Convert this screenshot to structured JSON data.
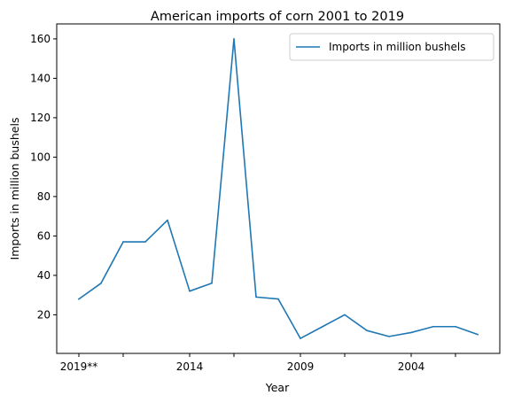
{
  "chart_data": {
    "type": "line",
    "title": "American imports of corn 2001 to 2019",
    "xlabel": "Year",
    "ylabel": "Imports in million bushels",
    "categories": [
      "2019**",
      "2018",
      "2017",
      "2016",
      "2015",
      "2014",
      "2013",
      "2012",
      "2011",
      "2010",
      "2009",
      "2008",
      "2007",
      "2006",
      "2005",
      "2004",
      "2003",
      "2002",
      "2001"
    ],
    "x_tick_labels": [
      {
        "category": "2019**",
        "label": "2019**"
      },
      {
        "category": "2017",
        "label": ""
      },
      {
        "category": "2014",
        "label": "2014"
      },
      {
        "category": "2012",
        "label": ""
      },
      {
        "category": "2009",
        "label": "2009"
      },
      {
        "category": "2007",
        "label": ""
      },
      {
        "category": "2004",
        "label": "2004"
      },
      {
        "category": "2002",
        "label": ""
      }
    ],
    "series": [
      {
        "name": "Imports in million bushels",
        "color": "#1f77b4",
        "values": [
          28,
          36,
          57,
          57,
          68,
          32,
          36,
          160,
          29,
          28,
          8,
          14,
          20,
          12,
          9,
          11,
          14,
          14,
          10
        ]
      }
    ],
    "yticks": [
      20,
      40,
      60,
      80,
      100,
      120,
      140,
      160
    ],
    "ylim": [
      0.4,
      167.6
    ],
    "xlim": [
      -1.0,
      19.0
    ],
    "grid": false,
    "legend_position": "upper right"
  }
}
